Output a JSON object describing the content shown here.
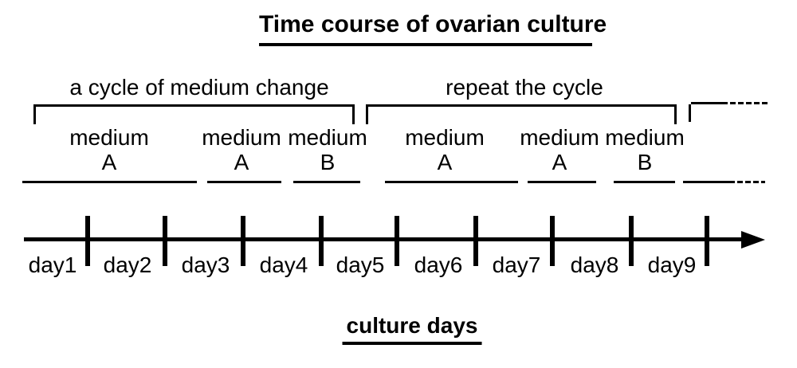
{
  "title": "Time course of ovarian culture",
  "brackets": {
    "first_cycle_label": "a cycle of medium change",
    "repeat_cycle_label": "repeat the cycle"
  },
  "segments": [
    {
      "line1": "medium",
      "line2": "A"
    },
    {
      "line1": "medium",
      "line2": "A"
    },
    {
      "line1": "medium",
      "line2": "B"
    },
    {
      "line1": "medium",
      "line2": "A"
    },
    {
      "line1": "medium",
      "line2": "A"
    },
    {
      "line1": "medium",
      "line2": "B"
    }
  ],
  "timeline": {
    "days": [
      "day1",
      "day2",
      "day3",
      "day4",
      "day5",
      "day6",
      "day7",
      "day8",
      "day9"
    ],
    "axis_label": "culture days"
  },
  "colors": {
    "ink": "#000000",
    "background": "#ffffff"
  }
}
